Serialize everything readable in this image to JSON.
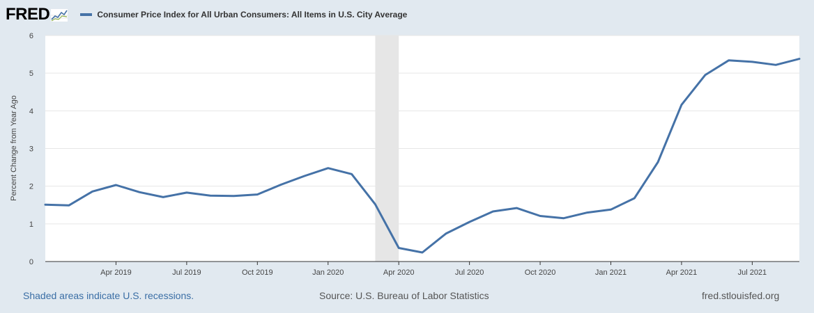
{
  "header": {
    "logo_text": "FRED",
    "logo_icon": "trend-line-icon",
    "legend_label": "Consumer Price Index for All Urban Consumers: All Items in U.S. City Average",
    "legend_color": "#4572a7"
  },
  "footer": {
    "recession_note": "Shaded areas indicate U.S. recessions.",
    "source": "Source: U.S. Bureau of Labor Statistics",
    "site": "fred.stlouisfed.org"
  },
  "chart_data": {
    "type": "line",
    "title": "",
    "xlabel": "",
    "ylabel": "Percent Change from Year Ago",
    "ylim": [
      0,
      6
    ],
    "yticks": [
      0,
      1,
      2,
      3,
      4,
      5,
      6
    ],
    "grid": true,
    "line_color": "#4572a7",
    "recession_color": "#e6e6e6",
    "recessions": [
      {
        "start": "2020-03",
        "end": "2020-04"
      }
    ],
    "x_range": {
      "start": "2019-01",
      "end": "2021-09"
    },
    "xticks": [
      {
        "date": "2019-04",
        "label": "Apr 2019"
      },
      {
        "date": "2019-07",
        "label": "Jul 2019"
      },
      {
        "date": "2019-10",
        "label": "Oct 2019"
      },
      {
        "date": "2020-01",
        "label": "Jan 2020"
      },
      {
        "date": "2020-04",
        "label": "Apr 2020"
      },
      {
        "date": "2020-07",
        "label": "Jul 2020"
      },
      {
        "date": "2020-10",
        "label": "Oct 2020"
      },
      {
        "date": "2021-01",
        "label": "Jan 2021"
      },
      {
        "date": "2021-04",
        "label": "Apr 2021"
      },
      {
        "date": "2021-07",
        "label": "Jul 2021"
      }
    ],
    "series": [
      {
        "x": [
          "2019-01",
          "2019-02",
          "2019-03",
          "2019-04",
          "2019-05",
          "2019-06",
          "2019-07",
          "2019-08",
          "2019-09",
          "2019-10",
          "2019-11",
          "2019-12",
          "2020-01",
          "2020-02",
          "2020-03",
          "2020-04",
          "2020-05",
          "2020-06",
          "2020-07",
          "2020-08",
          "2020-09",
          "2020-10",
          "2020-11",
          "2020-12",
          "2021-01",
          "2021-02",
          "2021-03",
          "2021-04",
          "2021-05",
          "2021-06",
          "2021-07",
          "2021-08",
          "2021-09"
        ],
        "values": [
          1.51,
          1.49,
          1.86,
          2.03,
          1.84,
          1.71,
          1.83,
          1.75,
          1.74,
          1.78,
          2.04,
          2.27,
          2.48,
          2.32,
          1.52,
          0.36,
          0.24,
          0.74,
          1.05,
          1.33,
          1.42,
          1.21,
          1.15,
          1.3,
          1.38,
          1.68,
          2.64,
          4.16,
          4.95,
          5.34,
          5.3,
          5.22,
          5.38
        ]
      }
    ]
  }
}
